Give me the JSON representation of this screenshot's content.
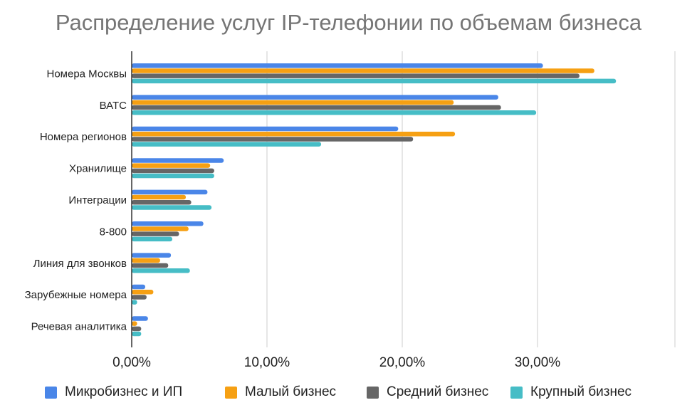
{
  "chart_data": {
    "type": "bar",
    "orientation": "horizontal",
    "title": "Распределение услуг IP-телефонии по объемам бизнеса",
    "xlabel": "",
    "ylabel": "",
    "xlim": [
      0,
      40
    ],
    "x_ticks": [
      0,
      10,
      20,
      30
    ],
    "x_tick_labels": [
      "0,00%",
      "10,00%",
      "20,00%",
      "30,00%"
    ],
    "grid": true,
    "legend_position": "bottom",
    "categories": [
      "Номера Москвы",
      "ВАТС",
      "Номера регионов",
      "Хранилище",
      "Интеграции",
      "8-800",
      "Линия для звонков",
      "Зарубежные номера",
      "Речевая аналитика"
    ],
    "series": [
      {
        "name": "Микробизнес и ИП",
        "color": "#4a86e8",
        "values": [
          30.4,
          27.1,
          19.7,
          6.8,
          5.6,
          5.3,
          2.9,
          1.0,
          1.2
        ]
      },
      {
        "name": "Малый бизнес",
        "color": "#f6a013",
        "values": [
          34.2,
          23.8,
          23.9,
          5.8,
          4.0,
          4.2,
          2.1,
          1.6,
          0.4
        ]
      },
      {
        "name": "Средний бизнес",
        "color": "#666666",
        "values": [
          33.1,
          27.3,
          20.8,
          6.1,
          4.4,
          3.5,
          2.7,
          1.1,
          0.7
        ]
      },
      {
        "name": "Крупный бизнес",
        "color": "#46bdc6",
        "values": [
          35.8,
          29.9,
          14.0,
          6.1,
          5.9,
          3.0,
          4.3,
          0.4,
          0.7
        ]
      }
    ]
  }
}
